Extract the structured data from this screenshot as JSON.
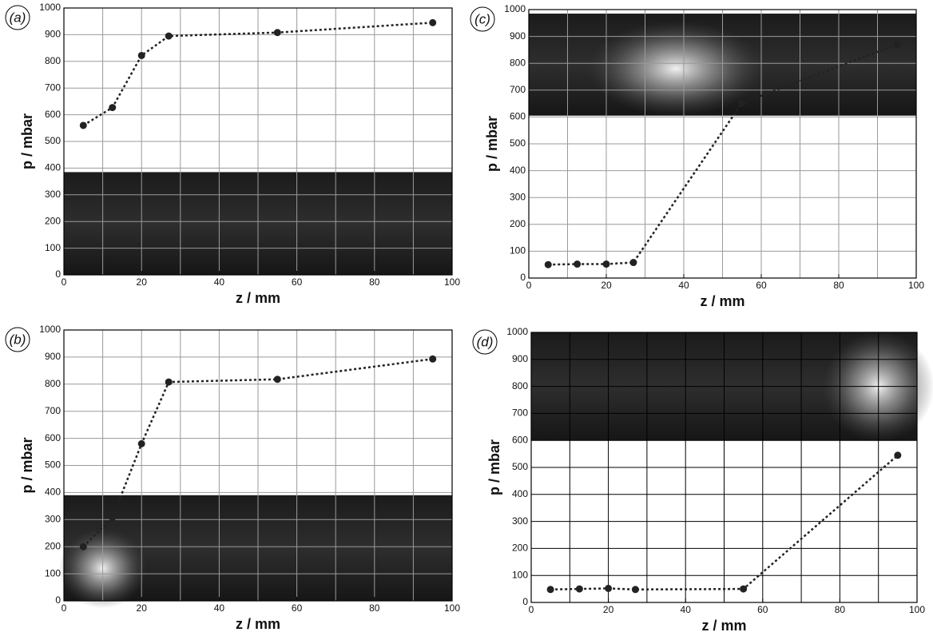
{
  "chart_data": [
    {
      "type": "line",
      "label": "(a)",
      "xlabel": "z / mm",
      "ylabel": "p / mbar",
      "xlim": [
        0,
        100
      ],
      "ylim": [
        0,
        1000
      ],
      "xticks": [
        0,
        20,
        40,
        60,
        80,
        100
      ],
      "yticks": [
        0,
        100,
        200,
        300,
        400,
        500,
        600,
        700,
        800,
        900,
        1000
      ],
      "xgrid": [
        10,
        20,
        30,
        40,
        50,
        60,
        70,
        80,
        90
      ],
      "grid_color": "#9a9a9a",
      "series": [
        {
          "color": "#222222",
          "x": [
            5,
            12.5,
            20,
            27,
            55,
            95
          ],
          "values": [
            560,
            627,
            822,
            895,
            908,
            945
          ]
        }
      ]
    },
    {
      "type": "line",
      "label": "(b)",
      "xlabel": "z / mm",
      "ylabel": "p / mbar",
      "xlim": [
        0,
        100
      ],
      "ylim": [
        0,
        1000
      ],
      "xticks": [
        0,
        20,
        40,
        60,
        80,
        100
      ],
      "yticks": [
        0,
        100,
        200,
        300,
        400,
        500,
        600,
        700,
        800,
        900,
        1000
      ],
      "xgrid": [
        10,
        20,
        30,
        40,
        50,
        60,
        70,
        80,
        90
      ],
      "grid_color": "#9a9a9a",
      "series": [
        {
          "color": "#222222",
          "x": [
            5,
            12.5,
            20,
            27,
            55,
            95
          ],
          "values": [
            200,
            308,
            580,
            808,
            818,
            893
          ]
        }
      ]
    },
    {
      "type": "line",
      "label": "(c)",
      "xlabel": "z / mm",
      "ylabel": "p / mbar",
      "xlim": [
        0,
        100
      ],
      "ylim": [
        0,
        1000
      ],
      "xticks": [
        0,
        20,
        40,
        60,
        80,
        100
      ],
      "yticks": [
        0,
        100,
        200,
        300,
        400,
        500,
        600,
        700,
        800,
        900,
        1000
      ],
      "xgrid": [
        10,
        20,
        30,
        40,
        50,
        60,
        70,
        80,
        90
      ],
      "grid_color": "#9a9a9a",
      "series": [
        {
          "color": "#222222",
          "x": [
            5,
            12.5,
            20,
            27,
            55,
            95
          ],
          "values": [
            50,
            52,
            52,
            58,
            652,
            870
          ]
        }
      ]
    },
    {
      "type": "line",
      "label": "(d)",
      "xlabel": "z / mm",
      "ylabel": "p / mbar",
      "xlim": [
        0,
        100
      ],
      "ylim": [
        0,
        1000
      ],
      "xticks": [
        0,
        20,
        40,
        60,
        80,
        100
      ],
      "yticks": [
        0,
        100,
        200,
        300,
        400,
        500,
        600,
        700,
        800,
        900,
        1000
      ],
      "xgrid": [
        10,
        20,
        30,
        40,
        50,
        60,
        70,
        80,
        90
      ],
      "grid_color": "#000000",
      "series": [
        {
          "color": "#222222",
          "x": [
            5,
            12.5,
            20,
            27,
            55,
            95
          ],
          "values": [
            48,
            50,
            52,
            48,
            50,
            545
          ]
        }
      ]
    }
  ]
}
